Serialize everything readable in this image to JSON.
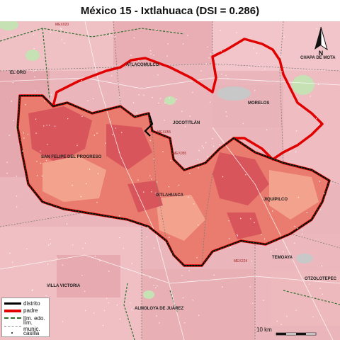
{
  "title": "México 15 - Ixtlahuaca (DSI = 0.286)",
  "legend": {
    "items": [
      {
        "label": "distrito",
        "symbol": "thick-black-line"
      },
      {
        "label": "padre",
        "symbol": "thick-red-line"
      },
      {
        "label": "lím. edo.",
        "symbol": "dashed-green-line"
      },
      {
        "label": "lím. munic.",
        "symbol": "dashed-grey-line"
      },
      {
        "label": "casilla",
        "symbol": "small-dot"
      }
    ]
  },
  "north_arrow": {
    "label": "N"
  },
  "scale_bar": {
    "label": "10 km"
  },
  "places": [
    {
      "name": "EL ORO"
    },
    {
      "name": "ATLACOMULCO"
    },
    {
      "name": "CHAPA DE MOTA"
    },
    {
      "name": "MORELOS"
    },
    {
      "name": "JOCOTITLÁN"
    },
    {
      "name": "SAN FELIPE DEL PROGRESO"
    },
    {
      "name": "IXTLAHUACA"
    },
    {
      "name": "JIQUIPILCO"
    },
    {
      "name": "TEMOAYA"
    },
    {
      "name": "VILLA VICTORIA"
    },
    {
      "name": "ALMOLOYA DE JUÁREZ"
    },
    {
      "name": "OTZOLOTEPEC"
    }
  ],
  "road_labels": [
    {
      "name": "MEX020"
    },
    {
      "name": "MEX055"
    },
    {
      "name": "MEX055"
    },
    {
      "name": "MEX224"
    }
  ],
  "colors": {
    "district_fill_dark": "#d9555c",
    "district_fill_mid": "#e97c6e",
    "district_fill_light": "#f3a28d",
    "outside_fill": "#eab3b8",
    "water": "#c8c8c8",
    "green_patch": "#c6e1b3",
    "padre": "#e00000",
    "distrito": "#000000"
  }
}
